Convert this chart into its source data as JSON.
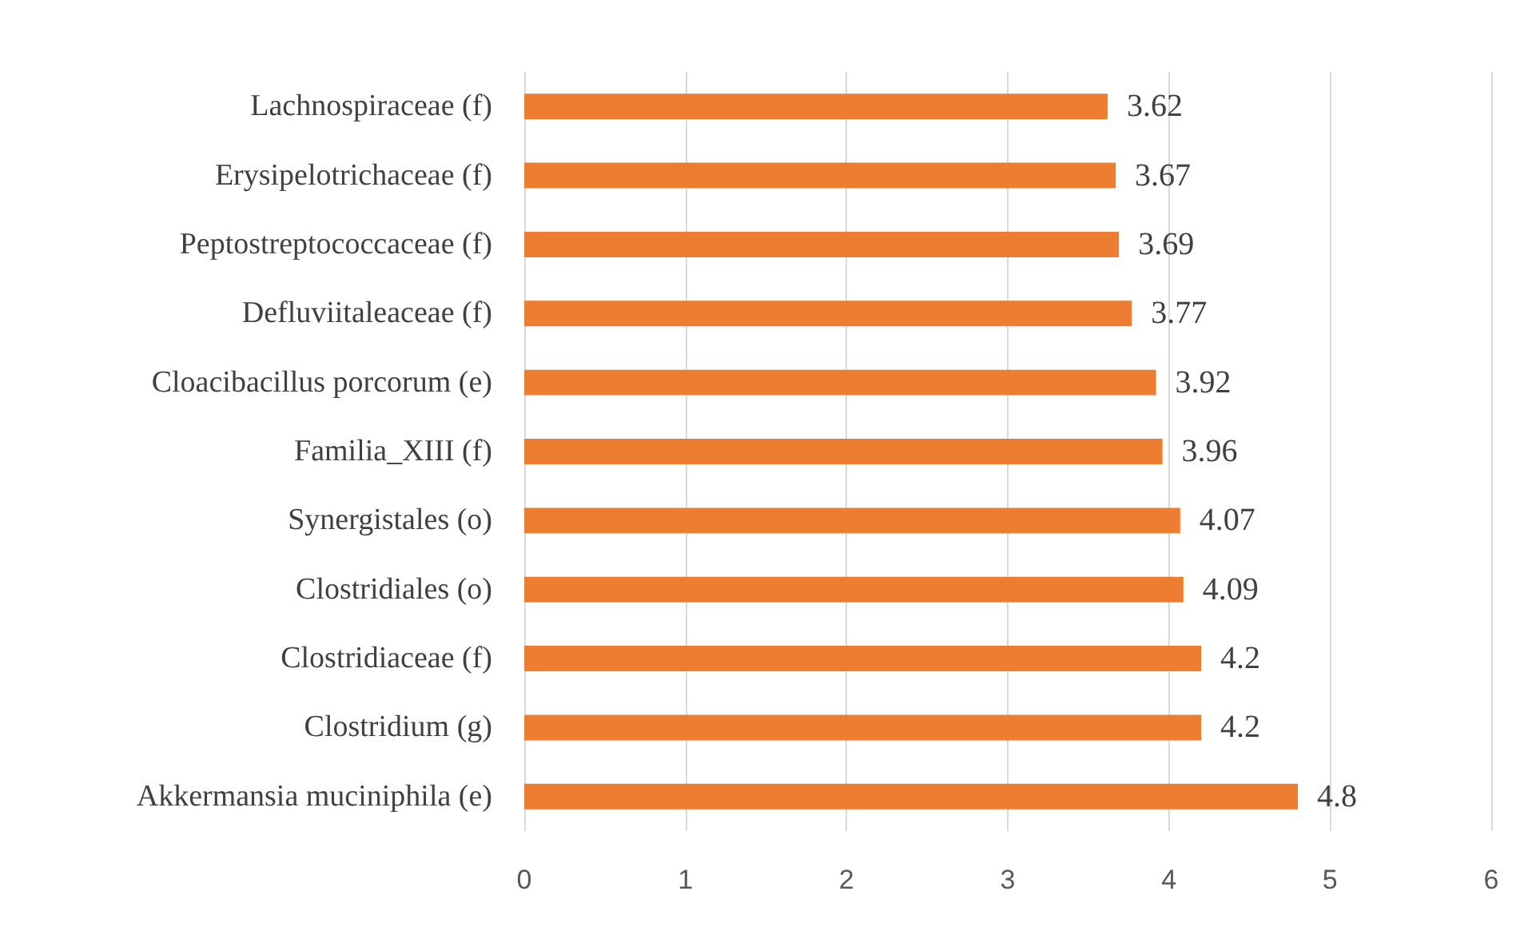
{
  "chart_data": {
    "type": "bar",
    "orientation": "horizontal",
    "categories": [
      "Lachnospiraceae (f)",
      "Erysipelotrichaceae (f)",
      "Peptostreptococcaceae (f)",
      "Defluviitaleaceae (f)",
      "Cloacibacillus porcorum (e)",
      "Familia_XIII (f)",
      "Synergistales (o)",
      "Clostridiales (o)",
      "Clostridiaceae (f)",
      "Clostridium (g)",
      "Akkermansia muciniphila (e)"
    ],
    "values": [
      3.62,
      3.67,
      3.69,
      3.77,
      3.92,
      3.96,
      4.07,
      4.09,
      4.2,
      4.2,
      4.8
    ],
    "color": "#ed7d31",
    "xlim": [
      0,
      6
    ],
    "xticks": [
      0,
      1,
      2,
      3,
      4,
      5,
      6
    ],
    "grid": "x",
    "data_labels": true
  }
}
